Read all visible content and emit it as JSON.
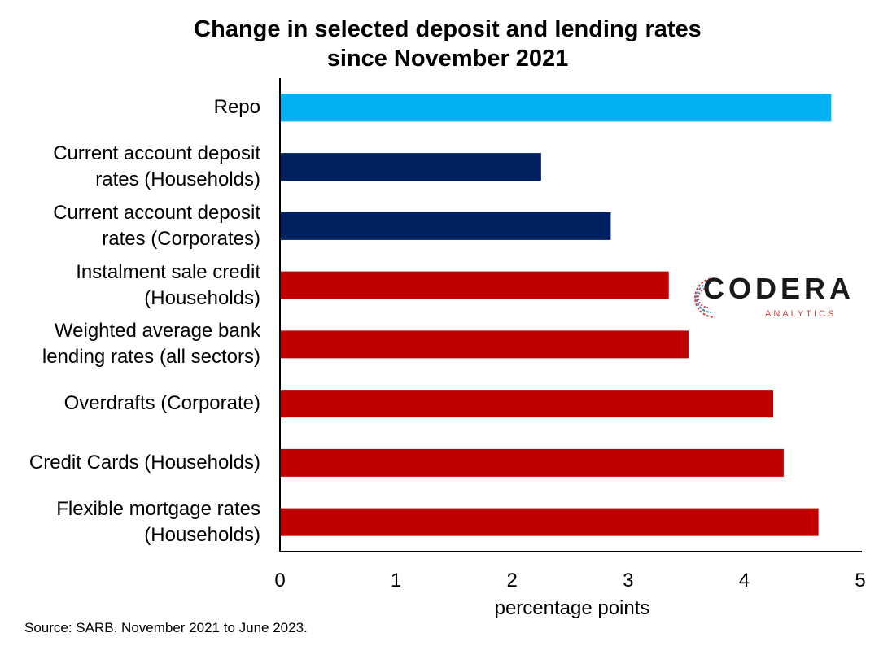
{
  "chart_data": {
    "type": "bar",
    "orientation": "horizontal",
    "title": "Change in selected deposit and lending rates since November 2021",
    "categories": [
      [
        "Repo"
      ],
      [
        "Current account deposit",
        "rates (Households)"
      ],
      [
        "Current account deposit",
        "rates (Corporates)"
      ],
      [
        "Instalment sale credit",
        "(Households)"
      ],
      [
        "Weighted average bank",
        "lending rates (all sectors)"
      ],
      [
        "Overdrafts (Corporate)"
      ],
      [
        "Credit Cards (Households)"
      ],
      [
        "Flexible mortgage rates",
        "(Households)"
      ]
    ],
    "values": [
      4.75,
      2.25,
      2.85,
      3.35,
      3.52,
      4.25,
      4.34,
      4.64
    ],
    "bar_colors": [
      "#00b0f0",
      "#002060",
      "#002060",
      "#c00000",
      "#c00000",
      "#c00000",
      "#c00000",
      "#c00000"
    ],
    "xlabel": "percentage points",
    "xlim": [
      0,
      5
    ],
    "xticks": [
      0,
      1,
      2,
      3,
      4,
      5
    ],
    "grid": false
  },
  "source": "Source: SARB. November 2021 to June 2023.",
  "logo": {
    "name": "CODERA",
    "sub": "ANALYTICS",
    "colors": [
      "#d64545",
      "#2e86c1"
    ]
  }
}
